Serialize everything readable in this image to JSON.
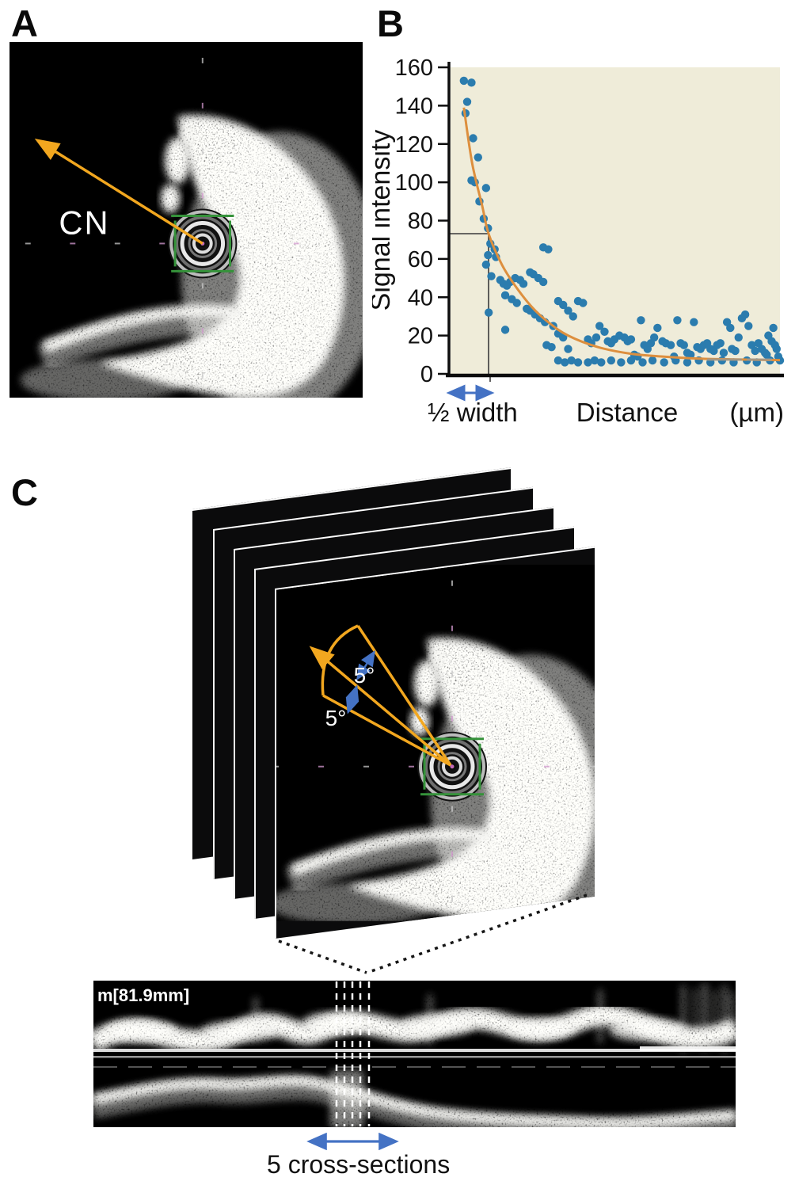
{
  "figure": {
    "panel_a": {
      "label": "A",
      "annotation": "CN"
    },
    "panel_b": {
      "label": "B"
    },
    "panel_c": {
      "label": "C",
      "frames": 5,
      "angle_labels": [
        "5°",
        "5°"
      ],
      "pullback_label": "m[81.9mm]",
      "caption": "5 cross-sections"
    }
  },
  "chart_data": {
    "type": "scatter",
    "ylabel": "Signal intensity",
    "xlabel": "Distance",
    "x_unit_label": "(µm)",
    "half_width_label": "½ width",
    "ylim": [
      0,
      160
    ],
    "yticks": [
      0,
      20,
      40,
      60,
      80,
      100,
      120,
      140,
      160
    ],
    "x_axis_numeric_labels": false,
    "x_normalized_range": [
      0,
      1
    ],
    "half_width_marker": {
      "x_fraction": 0.12,
      "intensity": 73
    },
    "grid": false,
    "legend": false,
    "plot_bg": "#efecd9",
    "point_color": "#2b7cae",
    "points": [
      [
        0.045,
        153
      ],
      [
        0.068,
        152
      ],
      [
        0.055,
        142
      ],
      [
        0.05,
        136
      ],
      [
        0.073,
        123
      ],
      [
        0.088,
        113
      ],
      [
        0.068,
        101
      ],
      [
        0.078,
        100
      ],
      [
        0.112,
        97
      ],
      [
        0.092,
        90
      ],
      [
        0.105,
        81
      ],
      [
        0.118,
        76
      ],
      [
        0.125,
        68
      ],
      [
        0.138,
        65
      ],
      [
        0.118,
        62
      ],
      [
        0.142,
        61
      ],
      [
        0.112,
        57
      ],
      [
        0.128,
        51
      ],
      [
        0.12,
        32
      ],
      [
        0.17,
        23
      ],
      [
        0.155,
        49
      ],
      [
        0.165,
        47
      ],
      [
        0.175,
        46
      ],
      [
        0.185,
        48
      ],
      [
        0.2,
        50
      ],
      [
        0.215,
        49
      ],
      [
        0.225,
        47
      ],
      [
        0.17,
        41
      ],
      [
        0.19,
        39
      ],
      [
        0.205,
        37
      ],
      [
        0.245,
        53
      ],
      [
        0.255,
        52
      ],
      [
        0.27,
        50
      ],
      [
        0.285,
        48
      ],
      [
        0.235,
        34
      ],
      [
        0.245,
        33
      ],
      [
        0.26,
        31
      ],
      [
        0.275,
        29
      ],
      [
        0.29,
        27
      ],
      [
        0.285,
        66
      ],
      [
        0.3,
        65
      ],
      [
        0.33,
        38
      ],
      [
        0.345,
        36
      ],
      [
        0.36,
        33
      ],
      [
        0.375,
        30
      ],
      [
        0.315,
        25
      ],
      [
        0.33,
        21
      ],
      [
        0.345,
        19
      ],
      [
        0.295,
        15
      ],
      [
        0.31,
        14
      ],
      [
        0.36,
        13
      ],
      [
        0.39,
        38
      ],
      [
        0.405,
        37
      ],
      [
        0.33,
        7
      ],
      [
        0.35,
        6
      ],
      [
        0.37,
        7
      ],
      [
        0.39,
        6
      ],
      [
        0.42,
        18
      ],
      [
        0.43,
        16
      ],
      [
        0.445,
        19
      ],
      [
        0.455,
        25
      ],
      [
        0.47,
        22
      ],
      [
        0.48,
        17
      ],
      [
        0.49,
        16
      ],
      [
        0.5,
        18
      ],
      [
        0.515,
        20
      ],
      [
        0.53,
        19
      ],
      [
        0.54,
        17
      ],
      [
        0.55,
        18
      ],
      [
        0.56,
        10
      ],
      [
        0.57,
        9
      ],
      [
        0.58,
        28
      ],
      [
        0.59,
        15
      ],
      [
        0.6,
        13
      ],
      [
        0.61,
        16
      ],
      [
        0.62,
        19
      ],
      [
        0.63,
        24
      ],
      [
        0.645,
        17
      ],
      [
        0.655,
        16
      ],
      [
        0.67,
        15
      ],
      [
        0.68,
        9
      ],
      [
        0.69,
        28
      ],
      [
        0.7,
        16
      ],
      [
        0.71,
        15
      ],
      [
        0.72,
        11
      ],
      [
        0.73,
        10
      ],
      [
        0.74,
        27
      ],
      [
        0.75,
        14
      ],
      [
        0.76,
        13
      ],
      [
        0.77,
        15
      ],
      [
        0.78,
        16
      ],
      [
        0.79,
        13
      ],
      [
        0.8,
        12
      ],
      [
        0.81,
        15
      ],
      [
        0.82,
        16
      ],
      [
        0.83,
        11
      ],
      [
        0.84,
        27
      ],
      [
        0.85,
        24
      ],
      [
        0.855,
        13
      ],
      [
        0.865,
        12
      ],
      [
        0.875,
        19
      ],
      [
        0.885,
        29
      ],
      [
        0.895,
        31
      ],
      [
        0.905,
        25
      ],
      [
        0.915,
        15
      ],
      [
        0.925,
        12
      ],
      [
        0.935,
        16
      ],
      [
        0.945,
        13
      ],
      [
        0.955,
        11
      ],
      [
        0.96,
        10
      ],
      [
        0.965,
        20
      ],
      [
        0.975,
        17
      ],
      [
        0.98,
        24
      ],
      [
        0.985,
        15
      ],
      [
        0.99,
        13
      ],
      [
        0.995,
        9
      ],
      [
        1.0,
        7
      ],
      [
        0.42,
        6
      ],
      [
        0.44,
        7
      ],
      [
        0.46,
        6
      ],
      [
        0.49,
        7
      ],
      [
        0.52,
        6
      ],
      [
        0.55,
        7
      ],
      [
        0.585,
        6
      ],
      [
        0.615,
        7
      ],
      [
        0.65,
        6
      ],
      [
        0.685,
        7
      ],
      [
        0.72,
        6
      ],
      [
        0.755,
        7
      ],
      [
        0.79,
        6
      ],
      [
        0.825,
        7
      ],
      [
        0.86,
        6
      ],
      [
        0.9,
        7
      ],
      [
        0.93,
        6
      ],
      [
        0.97,
        7
      ]
    ],
    "fit_curve": {
      "color": "#dd8f3e",
      "points": [
        [
          0.045,
          139
        ],
        [
          0.07,
          110
        ],
        [
          0.1,
          88
        ],
        [
          0.12,
          73
        ],
        [
          0.16,
          57
        ],
        [
          0.2,
          46
        ],
        [
          0.25,
          35
        ],
        [
          0.3,
          27
        ],
        [
          0.36,
          20
        ],
        [
          0.45,
          14
        ],
        [
          0.55,
          10.5
        ],
        [
          0.65,
          9
        ],
        [
          0.75,
          8
        ],
        [
          0.85,
          7.6
        ],
        [
          1.0,
          7.2
        ]
      ]
    }
  },
  "colors": {
    "accent_orange": "#f2a71f",
    "curve_orange": "#dd8f3e",
    "annotation_blue": "#4472c4",
    "bracket_green": "#35923a",
    "dot_blue": "#2b7cae",
    "plot_bg": "#efecd9"
  }
}
